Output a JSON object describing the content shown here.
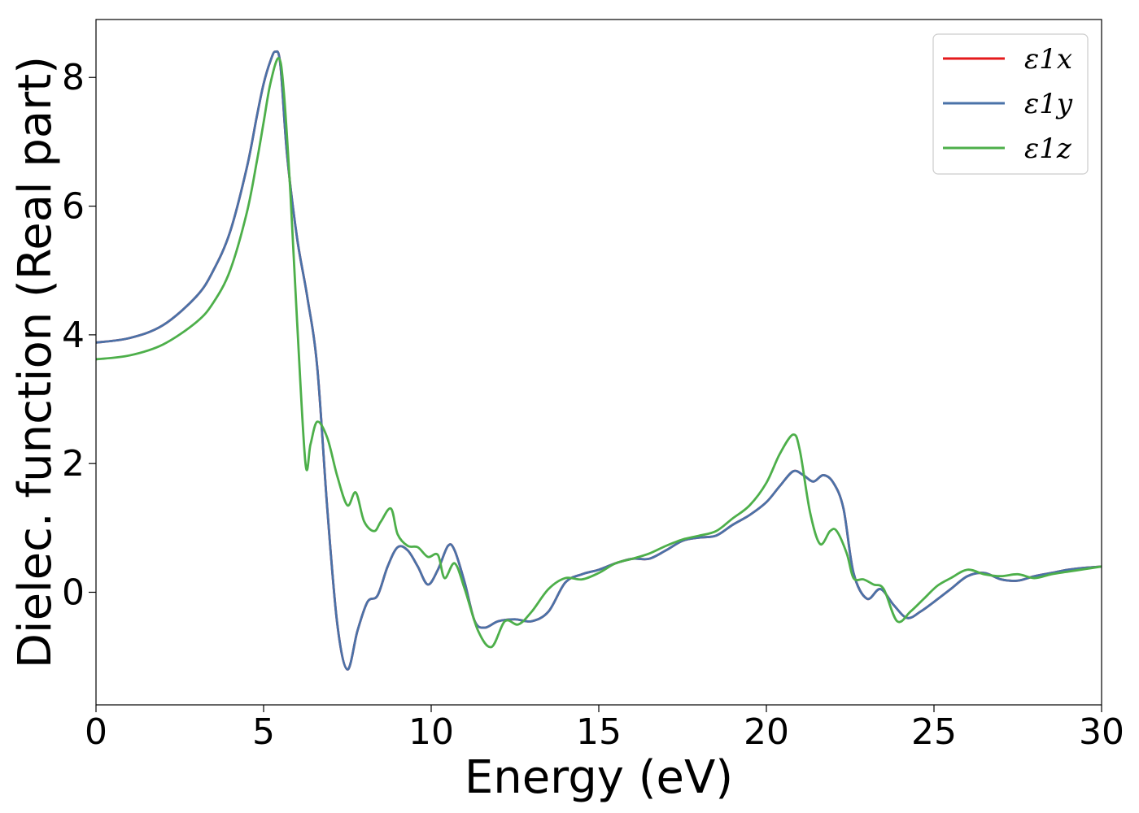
{
  "chart_data": {
    "type": "line",
    "xlabel": "Energy (eV)",
    "ylabel": "Dielec. function (Real part)",
    "xlim": [
      0,
      30
    ],
    "ylim": [
      -1.75,
      8.9
    ],
    "xticks": [
      0,
      5,
      10,
      15,
      20,
      25,
      30
    ],
    "yticks": [
      0,
      2,
      4,
      6,
      8
    ],
    "grid": false,
    "legend_position": "top-right",
    "series": [
      {
        "name": "ε1x",
        "color": "#e41a1c",
        "x": [
          0,
          1,
          2,
          3,
          3.5,
          4,
          4.5,
          4.8,
          5,
          5.2,
          5.35,
          5.5,
          5.7,
          6,
          6.3,
          6.6,
          6.9,
          7.2,
          7.5,
          7.8,
          8.1,
          8.4,
          8.7,
          9,
          9.3,
          9.6,
          9.9,
          10.2,
          10.5,
          10.7,
          11,
          11.3,
          11.6,
          12,
          12.5,
          13,
          13.5,
          14,
          14.5,
          15,
          15.5,
          16,
          16.5,
          17,
          17.5,
          18,
          18.5,
          19,
          19.5,
          20,
          20.4,
          20.8,
          21.1,
          21.4,
          21.7,
          22,
          22.3,
          22.6,
          23,
          23.4,
          23.8,
          24.2,
          24.6,
          25,
          25.5,
          26,
          26.5,
          27,
          27.5,
          28,
          28.5,
          29,
          29.5,
          30
        ],
        "y": [
          3.88,
          3.95,
          4.15,
          4.6,
          5.0,
          5.6,
          6.6,
          7.4,
          7.9,
          8.25,
          8.4,
          8.2,
          6.8,
          5.5,
          4.6,
          3.5,
          1.3,
          -0.5,
          -1.2,
          -0.6,
          -0.15,
          -0.05,
          0.4,
          0.7,
          0.65,
          0.4,
          0.12,
          0.35,
          0.72,
          0.65,
          0.15,
          -0.45,
          -0.55,
          -0.45,
          -0.42,
          -0.45,
          -0.3,
          0.15,
          0.28,
          0.35,
          0.45,
          0.52,
          0.52,
          0.65,
          0.8,
          0.85,
          0.88,
          1.05,
          1.2,
          1.4,
          1.65,
          1.88,
          1.82,
          1.72,
          1.82,
          1.7,
          1.3,
          0.3,
          -0.1,
          0.05,
          -0.2,
          -0.4,
          -0.3,
          -0.15,
          0.05,
          0.25,
          0.3,
          0.2,
          0.18,
          0.25,
          0.3,
          0.35,
          0.38,
          0.4
        ]
      },
      {
        "name": "ε1y",
        "color": "#4a72a8",
        "x": [
          0,
          1,
          2,
          3,
          3.5,
          4,
          4.5,
          4.8,
          5,
          5.2,
          5.35,
          5.5,
          5.7,
          6,
          6.3,
          6.6,
          6.9,
          7.2,
          7.5,
          7.8,
          8.1,
          8.4,
          8.7,
          9,
          9.3,
          9.6,
          9.9,
          10.2,
          10.5,
          10.7,
          11,
          11.3,
          11.6,
          12,
          12.5,
          13,
          13.5,
          14,
          14.5,
          15,
          15.5,
          16,
          16.5,
          17,
          17.5,
          18,
          18.5,
          19,
          19.5,
          20,
          20.4,
          20.8,
          21.1,
          21.4,
          21.7,
          22,
          22.3,
          22.6,
          23,
          23.4,
          23.8,
          24.2,
          24.6,
          25,
          25.5,
          26,
          26.5,
          27,
          27.5,
          28,
          28.5,
          29,
          29.5,
          30
        ],
        "y": [
          3.88,
          3.95,
          4.15,
          4.6,
          5.0,
          5.6,
          6.6,
          7.4,
          7.9,
          8.25,
          8.4,
          8.2,
          6.8,
          5.5,
          4.6,
          3.5,
          1.3,
          -0.5,
          -1.2,
          -0.6,
          -0.15,
          -0.05,
          0.4,
          0.7,
          0.65,
          0.4,
          0.12,
          0.35,
          0.72,
          0.65,
          0.15,
          -0.45,
          -0.55,
          -0.45,
          -0.42,
          -0.45,
          -0.3,
          0.15,
          0.28,
          0.35,
          0.45,
          0.52,
          0.52,
          0.65,
          0.8,
          0.85,
          0.88,
          1.05,
          1.2,
          1.4,
          1.65,
          1.88,
          1.82,
          1.72,
          1.82,
          1.7,
          1.3,
          0.3,
          -0.1,
          0.05,
          -0.2,
          -0.4,
          -0.3,
          -0.15,
          0.05,
          0.25,
          0.3,
          0.2,
          0.18,
          0.25,
          0.3,
          0.35,
          0.38,
          0.4
        ]
      },
      {
        "name": "ε1z",
        "color": "#4daf4a",
        "x": [
          0,
          1,
          2,
          3,
          3.5,
          4,
          4.5,
          4.8,
          5,
          5.2,
          5.45,
          5.6,
          5.8,
          6.0,
          6.25,
          6.4,
          6.6,
          6.9,
          7.2,
          7.5,
          7.75,
          8.0,
          8.3,
          8.5,
          8.8,
          9.0,
          9.3,
          9.6,
          9.9,
          10.2,
          10.4,
          10.7,
          11,
          11.4,
          11.8,
          12.2,
          12.6,
          13,
          13.5,
          14,
          14.5,
          15,
          15.5,
          16,
          16.5,
          17,
          17.5,
          18,
          18.5,
          19,
          19.5,
          20,
          20.4,
          20.8,
          21.0,
          21.3,
          21.6,
          21.9,
          22.1,
          22.4,
          22.6,
          22.9,
          23.2,
          23.5,
          23.9,
          24.3,
          24.7,
          25.1,
          25.5,
          26,
          26.5,
          27,
          27.5,
          28,
          28.5,
          29,
          29.5,
          30
        ],
        "y": [
          3.62,
          3.68,
          3.85,
          4.2,
          4.5,
          5.0,
          5.9,
          6.7,
          7.3,
          7.9,
          8.3,
          7.8,
          6.2,
          4.2,
          2.0,
          2.3,
          2.65,
          2.4,
          1.8,
          1.35,
          1.55,
          1.1,
          0.95,
          1.1,
          1.3,
          0.9,
          0.72,
          0.7,
          0.55,
          0.58,
          0.22,
          0.45,
          0.05,
          -0.6,
          -0.85,
          -0.45,
          -0.5,
          -0.3,
          0.05,
          0.22,
          0.2,
          0.3,
          0.45,
          0.52,
          0.6,
          0.72,
          0.82,
          0.88,
          0.95,
          1.15,
          1.35,
          1.7,
          2.15,
          2.45,
          2.2,
          1.25,
          0.75,
          0.95,
          0.95,
          0.6,
          0.22,
          0.2,
          0.12,
          0.05,
          -0.45,
          -0.3,
          -0.1,
          0.1,
          0.22,
          0.35,
          0.28,
          0.25,
          0.28,
          0.22,
          0.28,
          0.32,
          0.36,
          0.4
        ]
      }
    ]
  }
}
